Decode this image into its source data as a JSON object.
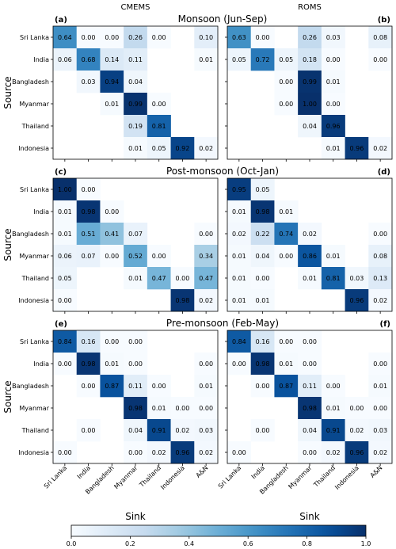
{
  "chart_data": {
    "type": "heatmap",
    "column_titles": [
      "CMEMS",
      "ROMS"
    ],
    "ylabel": "Source",
    "xlabel": "Sink",
    "sources": [
      "Sri Lanka",
      "India",
      "Bangladesh",
      "Myanmar",
      "Thailand",
      "Indonesia"
    ],
    "sinks": [
      "Sri Lanka",
      "India",
      "Bangladesh",
      "Myanmar",
      "Thailand",
      "Indonesia",
      "A&N"
    ],
    "colorbar": {
      "min": 0.0,
      "max": 1.0,
      "ticks": [
        "0.0",
        "0.2",
        "0.4",
        "0.6",
        "0.8",
        "1.0"
      ],
      "colormap": "Blues"
    },
    "rows": [
      {
        "title": "Monsoon (Jun-Sep)",
        "panels": [
          {
            "label": "(a)",
            "matrix": [
              [
                0.64,
                0.0,
                0.0,
                0.26,
                0.0,
                null,
                0.1
              ],
              [
                0.06,
                0.68,
                0.14,
                0.11,
                null,
                null,
                0.01
              ],
              [
                null,
                0.03,
                0.94,
                0.04,
                null,
                null,
                null
              ],
              [
                null,
                null,
                0.01,
                0.99,
                0.0,
                null,
                null
              ],
              [
                null,
                null,
                null,
                0.19,
                0.81,
                null,
                null
              ],
              [
                null,
                null,
                null,
                0.01,
                0.05,
                0.92,
                0.02
              ]
            ]
          },
          {
            "label": "(b)",
            "matrix": [
              [
                0.63,
                0.0,
                null,
                0.26,
                0.03,
                null,
                0.08
              ],
              [
                0.05,
                0.72,
                0.05,
                0.18,
                0.0,
                null,
                0.0
              ],
              [
                null,
                null,
                0.0,
                0.99,
                0.01,
                null,
                null
              ],
              [
                null,
                null,
                0.0,
                1.0,
                0.0,
                null,
                null
              ],
              [
                null,
                null,
                null,
                0.04,
                0.96,
                null,
                null
              ],
              [
                null,
                null,
                null,
                null,
                0.01,
                0.96,
                0.02
              ]
            ]
          }
        ]
      },
      {
        "title": "Post-monsoon (Oct-Jan)",
        "panels": [
          {
            "label": "(c)",
            "matrix": [
              [
                1.0,
                0.0,
                null,
                null,
                null,
                null,
                null
              ],
              [
                0.01,
                0.98,
                0.0,
                null,
                null,
                null,
                null
              ],
              [
                0.01,
                0.51,
                0.41,
                0.07,
                null,
                null,
                0.0
              ],
              [
                0.06,
                0.07,
                0.0,
                0.52,
                0.0,
                null,
                0.34
              ],
              [
                0.05,
                null,
                null,
                0.01,
                0.47,
                0.0,
                0.47
              ],
              [
                0.0,
                null,
                null,
                null,
                null,
                0.98,
                0.02
              ]
            ]
          },
          {
            "label": "(d)",
            "matrix": [
              [
                0.95,
                0.05,
                null,
                null,
                null,
                null,
                null
              ],
              [
                0.01,
                0.98,
                0.01,
                null,
                null,
                null,
                null
              ],
              [
                0.02,
                0.22,
                0.74,
                0.02,
                null,
                null,
                0.0
              ],
              [
                0.01,
                0.04,
                0.0,
                0.86,
                0.01,
                null,
                0.08
              ],
              [
                0.01,
                0.0,
                null,
                0.01,
                0.81,
                0.03,
                0.13
              ],
              [
                0.01,
                0.01,
                null,
                null,
                null,
                0.96,
                0.02
              ]
            ]
          }
        ]
      },
      {
        "title": "Pre-monsoon (Feb-May)",
        "panels": [
          {
            "label": "(e)",
            "matrix": [
              [
                0.84,
                0.16,
                0.0,
                0.0,
                null,
                null,
                null
              ],
              [
                0.0,
                0.98,
                0.01,
                0.0,
                null,
                null,
                0.0
              ],
              [
                null,
                0.0,
                0.87,
                0.11,
                0.0,
                null,
                0.01
              ],
              [
                null,
                null,
                null,
                0.98,
                0.01,
                0.0,
                0.0
              ],
              [
                null,
                0.0,
                null,
                0.04,
                0.91,
                0.02,
                0.03
              ],
              [
                0.0,
                null,
                null,
                0.0,
                0.02,
                0.96,
                0.02
              ]
            ]
          },
          {
            "label": "(f)",
            "matrix": [
              [
                0.84,
                0.16,
                0.0,
                0.0,
                null,
                null,
                null
              ],
              [
                0.0,
                0.98,
                0.01,
                0.0,
                null,
                null,
                0.0
              ],
              [
                null,
                0.0,
                0.87,
                0.11,
                0.0,
                null,
                0.01
              ],
              [
                null,
                null,
                null,
                0.98,
                0.01,
                0.0,
                0.0
              ],
              [
                null,
                0.0,
                null,
                0.04,
                0.91,
                0.02,
                0.03
              ],
              [
                0.0,
                null,
                null,
                0.0,
                0.02,
                0.96,
                0.02
              ]
            ]
          }
        ]
      }
    ]
  }
}
